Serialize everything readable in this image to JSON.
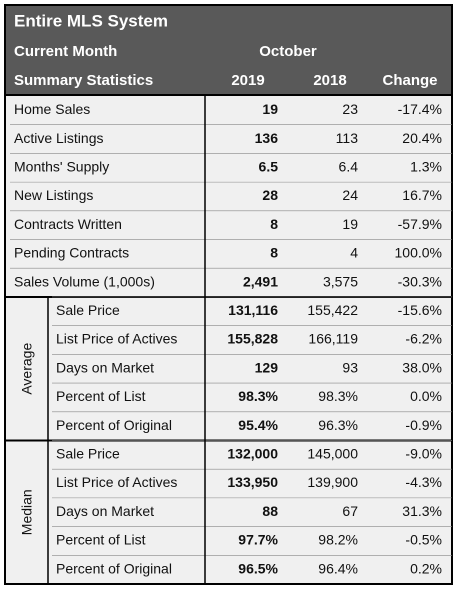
{
  "header": {
    "title": "Entire MLS System",
    "current_month_label": "Current Month",
    "month": "October",
    "summary_label": "Summary Statistics",
    "columns": [
      "2019",
      "2018",
      "Change"
    ]
  },
  "rows": [
    [
      "Home Sales",
      "19",
      "23",
      "-17.4%"
    ],
    [
      "Active Listings",
      "136",
      "113",
      "20.4%"
    ],
    [
      "Months' Supply",
      "6.5",
      "6.4",
      "1.3%"
    ],
    [
      "New Listings",
      "28",
      "24",
      "16.7%"
    ],
    [
      "Contracts Written",
      "8",
      "19",
      "-57.9%"
    ],
    [
      "Pending Contracts",
      "8",
      "4",
      "100.0%"
    ],
    [
      "Sales Volume (1,000s)",
      "2,491",
      "3,575",
      "-30.3%"
    ]
  ],
  "groups": [
    {
      "label": "Average",
      "rows": [
        [
          "Sale Price",
          "131,116",
          "155,422",
          "-15.6%"
        ],
        [
          "List Price of Actives",
          "155,828",
          "166,119",
          "-6.2%"
        ],
        [
          "Days on Market",
          "129",
          "93",
          "38.0%"
        ],
        [
          "Percent of List",
          "98.3%",
          "98.3%",
          "0.0%"
        ],
        [
          "Percent of Original",
          "95.4%",
          "96.3%",
          "-0.9%"
        ]
      ]
    },
    {
      "label": "Median",
      "rows": [
        [
          "Sale Price",
          "132,000",
          "145,000",
          "-9.0%"
        ],
        [
          "List Price of Actives",
          "133,950",
          "139,900",
          "-4.3%"
        ],
        [
          "Days on Market",
          "88",
          "67",
          "31.3%"
        ],
        [
          "Percent of List",
          "97.7%",
          "98.2%",
          "-0.5%"
        ],
        [
          "Percent of Original",
          "96.5%",
          "96.4%",
          "0.2%"
        ]
      ]
    }
  ]
}
